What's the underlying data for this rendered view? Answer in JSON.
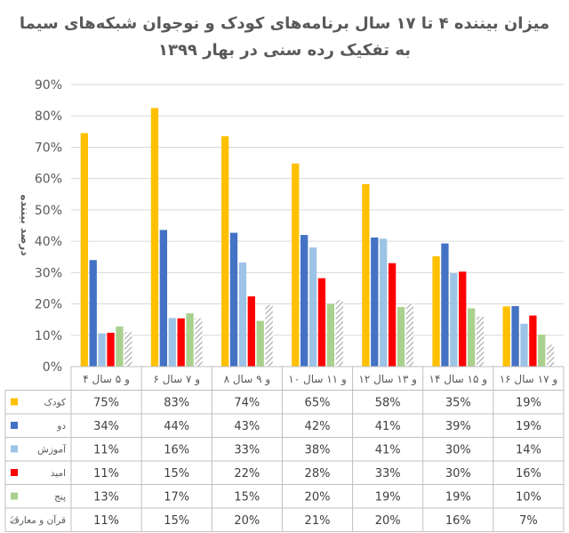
{
  "chart_data": {
    "type": "bar",
    "title": "میزان بیننده ۴ تا ۱۷ سال برنامه‌های کودک و نوجوان شبکه‌های سیما",
    "subtitle": "به تفکیک رده سنی در بهار ۱۳۹۹",
    "ylabel": "درصد بیننده",
    "ylim": [
      0,
      90
    ],
    "yticks": [
      "0%",
      "10%",
      "20%",
      "30%",
      "40%",
      "50%",
      "60%",
      "70%",
      "80%",
      "90%"
    ],
    "categories": [
      "۴ و ۵ سال",
      "۶ و ۷ سال",
      "۸ و ۹ سال",
      "۱۰ و ۱۱ سال",
      "۱۲ و ۱۳ سال",
      "۱۴ و ۱۵ سال",
      "۱۶ و ۱۷ سال"
    ],
    "series": [
      {
        "name": "کودک",
        "color": "#FFC000",
        "values": [
          74.5,
          82.5,
          73.5,
          64.8,
          58.2,
          35.2,
          19.2
        ],
        "labels": [
          "75%",
          "83%",
          "74%",
          "65%",
          "58%",
          "35%",
          "19%"
        ]
      },
      {
        "name": "دو",
        "color": "#4472C4",
        "values": [
          34.0,
          43.6,
          42.7,
          42.0,
          41.2,
          39.3,
          19.3
        ],
        "labels": [
          "34%",
          "44%",
          "43%",
          "42%",
          "41%",
          "39%",
          "19%"
        ]
      },
      {
        "name": "آموزش",
        "color": "#9DC3E6",
        "values": [
          10.6,
          15.5,
          33.2,
          38.0,
          40.8,
          29.8,
          13.7
        ],
        "labels": [
          "11%",
          "16%",
          "33%",
          "38%",
          "41%",
          "30%",
          "14%"
        ]
      },
      {
        "name": "امید",
        "color": "#FF0000",
        "values": [
          10.8,
          15.4,
          22.4,
          28.2,
          33.0,
          30.3,
          16.3
        ],
        "labels": [
          "11%",
          "15%",
          "22%",
          "28%",
          "33%",
          "30%",
          "16%"
        ]
      },
      {
        "name": "پنج",
        "color": "#A9D18E",
        "values": [
          12.8,
          17.0,
          14.6,
          20.0,
          19.0,
          18.6,
          10.2
        ],
        "labels": [
          "13%",
          "17%",
          "15%",
          "20%",
          "19%",
          "19%",
          "10%"
        ]
      },
      {
        "name": "قرآن و معارف",
        "color": "#A6A6A6",
        "pattern": "hatch",
        "values": [
          11.0,
          15.4,
          19.7,
          21.2,
          20.0,
          16.0,
          7.0
        ],
        "labels": [
          "11%",
          "15%",
          "20%",
          "21%",
          "20%",
          "16%",
          "7%"
        ]
      }
    ],
    "grid": true,
    "legend": "data-table"
  }
}
